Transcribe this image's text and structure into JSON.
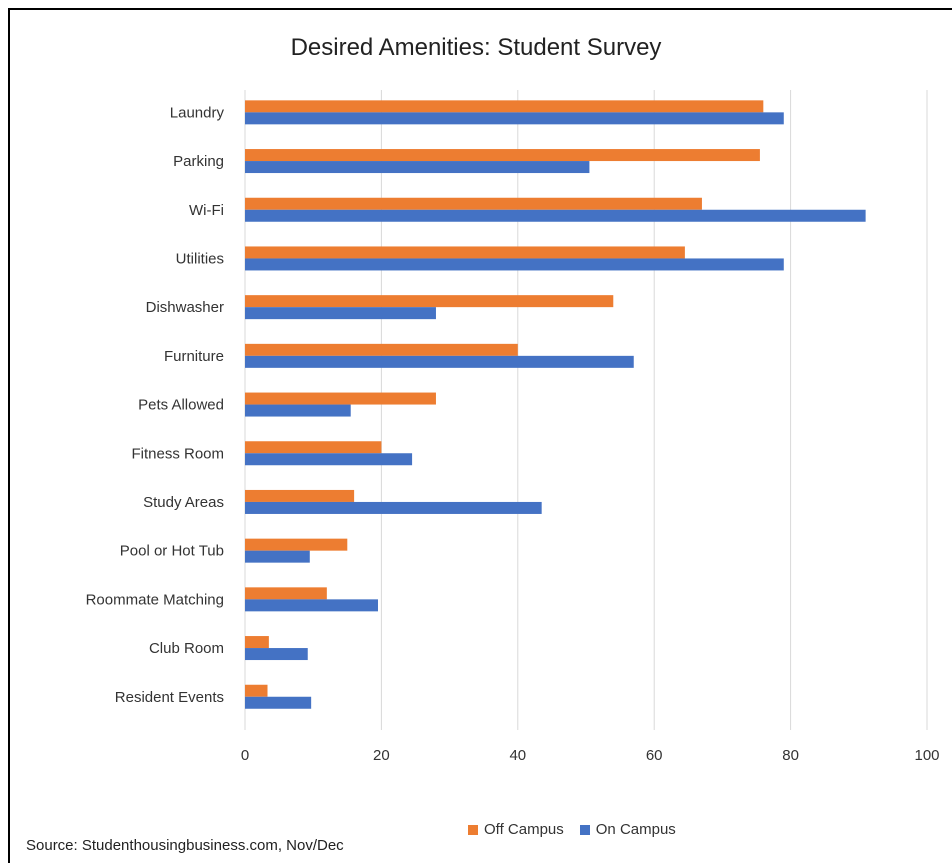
{
  "chart_data": {
    "type": "bar",
    "orientation": "horizontal",
    "title": "Desired Amenities: Student Survey",
    "categories": [
      "Laundry",
      "Parking",
      "Wi-Fi",
      "Utilities",
      "Dishwasher",
      "Furniture",
      "Pets Allowed",
      "Fitness Room",
      "Study Areas",
      "Pool or Hot Tub",
      "Roommate Matching",
      "Club Room",
      "Resident Events"
    ],
    "series": [
      {
        "name": "Off Campus",
        "color": "#ED7D31",
        "values": [
          76,
          75.5,
          67,
          64.5,
          54,
          40,
          28,
          20,
          16,
          15,
          12,
          3.5,
          3.3
        ]
      },
      {
        "name": "On Campus",
        "color": "#4472C4",
        "values": [
          79,
          50.5,
          91,
          79,
          28,
          57,
          15.5,
          24.5,
          43.5,
          9.5,
          19.5,
          9.2,
          9.7
        ]
      }
    ],
    "xlim": [
      0,
      100
    ],
    "xticks": [
      0,
      20,
      40,
      60,
      80,
      100
    ],
    "grid": "vertical",
    "legend_position": "bottom"
  },
  "footer": {
    "source": "Source: Studenthousingbusiness.com, Nov/Dec"
  }
}
